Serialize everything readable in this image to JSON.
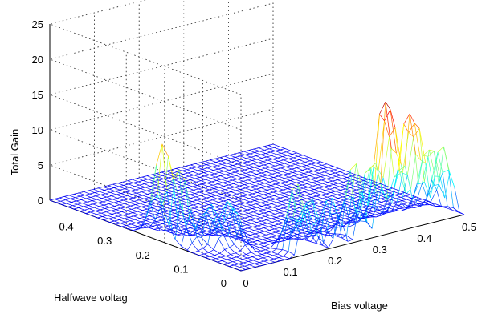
{
  "chart_data": {
    "type": "surface",
    "title": "",
    "zlabel": "Total Gain",
    "xlabel": "Bias voltage",
    "ylabel": "Halfwave voltag",
    "x_range": [
      0,
      0.5
    ],
    "y_range": [
      0,
      0.5
    ],
    "z_range": [
      0,
      25
    ],
    "x_ticks": [
      "0",
      "0.1",
      "0.2",
      "0.3",
      "0.4",
      "0.5"
    ],
    "y_ticks": [
      "0",
      "0.1",
      "0.2",
      "0.3",
      "0.4"
    ],
    "z_ticks": [
      "0",
      "5",
      "10",
      "15",
      "20",
      "25"
    ],
    "grid": true,
    "surface_style": "mesh",
    "colormap": "jet",
    "peaks": [
      {
        "bias": 0.01,
        "halfwave": 0.22,
        "gain": 12.5
      },
      {
        "bias": 0.02,
        "halfwave": 0.18,
        "gain": 9.5
      },
      {
        "bias": 0.05,
        "halfwave": 0.14,
        "gain": 6.5
      },
      {
        "bias": 0.08,
        "halfwave": 0.12,
        "gain": 7.0
      },
      {
        "bias": 0.14,
        "halfwave": 0.02,
        "gain": 10.0
      },
      {
        "bias": 0.17,
        "halfwave": 0.02,
        "gain": 8.0
      },
      {
        "bias": 0.22,
        "halfwave": 0.02,
        "gain": 7.0
      },
      {
        "bias": 0.27,
        "halfwave": 0.02,
        "gain": 11.0
      },
      {
        "bias": 0.31,
        "halfwave": 0.02,
        "gain": 12.0
      },
      {
        "bias": 0.34,
        "halfwave": 0.02,
        "gain": 19.5
      },
      {
        "bias": 0.36,
        "halfwave": 0.02,
        "gain": 13.0
      },
      {
        "bias": 0.39,
        "halfwave": 0.02,
        "gain": 15.0
      },
      {
        "bias": 0.41,
        "halfwave": 0.02,
        "gain": 14.0
      },
      {
        "bias": 0.44,
        "halfwave": 0.02,
        "gain": 12.0
      },
      {
        "bias": 0.47,
        "halfwave": 0.02,
        "gain": 10.5
      }
    ],
    "baseline_gain": 0
  }
}
